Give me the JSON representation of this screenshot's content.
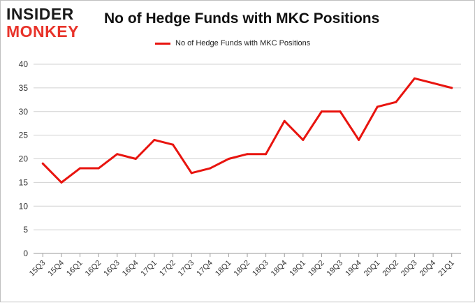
{
  "logo": {
    "line1": "INSIDER",
    "line2": "MONKEY"
  },
  "chart_data": {
    "type": "line",
    "title": "No of Hedge Funds with MKC Positions",
    "xlabel": "",
    "ylabel": "",
    "categories": [
      "15Q3",
      "15Q4",
      "16Q1",
      "16Q2",
      "16Q3",
      "16Q4",
      "17Q1",
      "17Q2",
      "17Q3",
      "17Q4",
      "18Q1",
      "18Q2",
      "18Q3",
      "18Q4",
      "19Q1",
      "19Q2",
      "19Q3",
      "19Q4",
      "20Q1",
      "20Q2",
      "20Q3",
      "20Q4",
      "21Q1"
    ],
    "series": [
      {
        "name": "No of Hedge Funds with MKC Positions",
        "color": "#e8140f",
        "values": [
          19,
          15,
          18,
          18,
          21,
          20,
          24,
          23,
          17,
          18,
          20,
          21,
          21,
          28,
          24,
          30,
          30,
          24,
          31,
          32,
          37,
          36,
          35
        ]
      }
    ],
    "ylim": [
      0,
      40
    ],
    "yticks": [
      0,
      5,
      10,
      15,
      20,
      25,
      30,
      35,
      40
    ],
    "grid": true,
    "legend": "top-center"
  }
}
